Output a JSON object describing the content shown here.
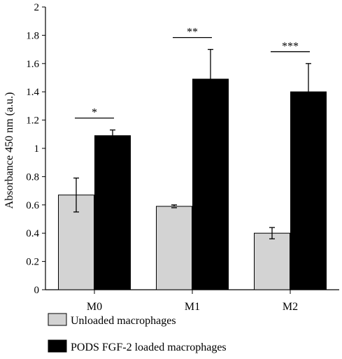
{
  "chart_data": {
    "type": "bar",
    "categories": [
      "M0",
      "M1",
      "M2"
    ],
    "series": [
      {
        "name": "Unloaded macrophages",
        "values": [
          0.67,
          0.59,
          0.4
        ],
        "errors": [
          0.12,
          0.01,
          0.04
        ],
        "color": "#d3d3d3"
      },
      {
        "name": "PODS FGF-2 loaded macrophages",
        "values": [
          1.09,
          1.49,
          1.4
        ],
        "errors": [
          0.04,
          0.21,
          0.2
        ],
        "color": "#000000"
      }
    ],
    "significance": [
      "*",
      "**",
      "***"
    ],
    "xlabel": "",
    "ylabel": "Absorbance 450 nm (a.u.)",
    "ylim": [
      0,
      2
    ],
    "yticks": [
      "0",
      "0.2",
      "0.4",
      "0.6",
      "0.8",
      "1",
      "1.2",
      "1.4",
      "1.6",
      "1.8",
      "2"
    ],
    "grid": false,
    "legend_position": "bottom"
  }
}
